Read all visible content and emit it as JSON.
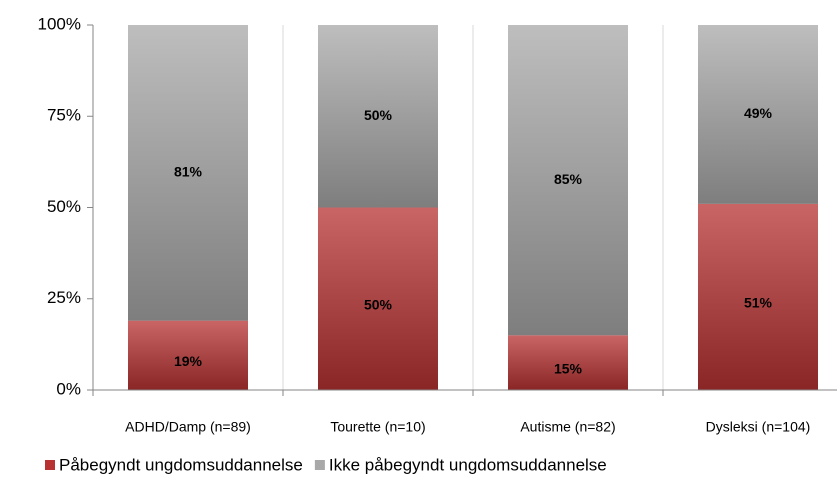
{
  "chart_data": {
    "type": "stacked_bar",
    "categories": [
      "ADHD/Damp (n=89)",
      "Tourette (n=10)",
      "Autisme (n=82)",
      "Dysleksi (n=104)"
    ],
    "series": [
      {
        "name": "Påbegyndt ungdomsuddannelse",
        "color": "#b83232",
        "values": [
          19,
          50,
          15,
          51
        ],
        "value_labels": [
          "19%",
          "50%",
          "15%",
          "51%"
        ]
      },
      {
        "name": "Ikke påbegyndt ungdomsuddannelse",
        "color": "#a8a8a8",
        "values": [
          81,
          50,
          85,
          49
        ],
        "value_labels": [
          "81%",
          "50%",
          "85%",
          "49%"
        ]
      }
    ],
    "ylim": [
      0,
      100
    ],
    "yticks": [
      {
        "value": 0,
        "label": "0%"
      },
      {
        "value": 25,
        "label": "25%"
      },
      {
        "value": 50,
        "label": "50%"
      },
      {
        "value": 75,
        "label": "75%"
      },
      {
        "value": 100,
        "label": "100%"
      }
    ],
    "legend": "bottom"
  }
}
